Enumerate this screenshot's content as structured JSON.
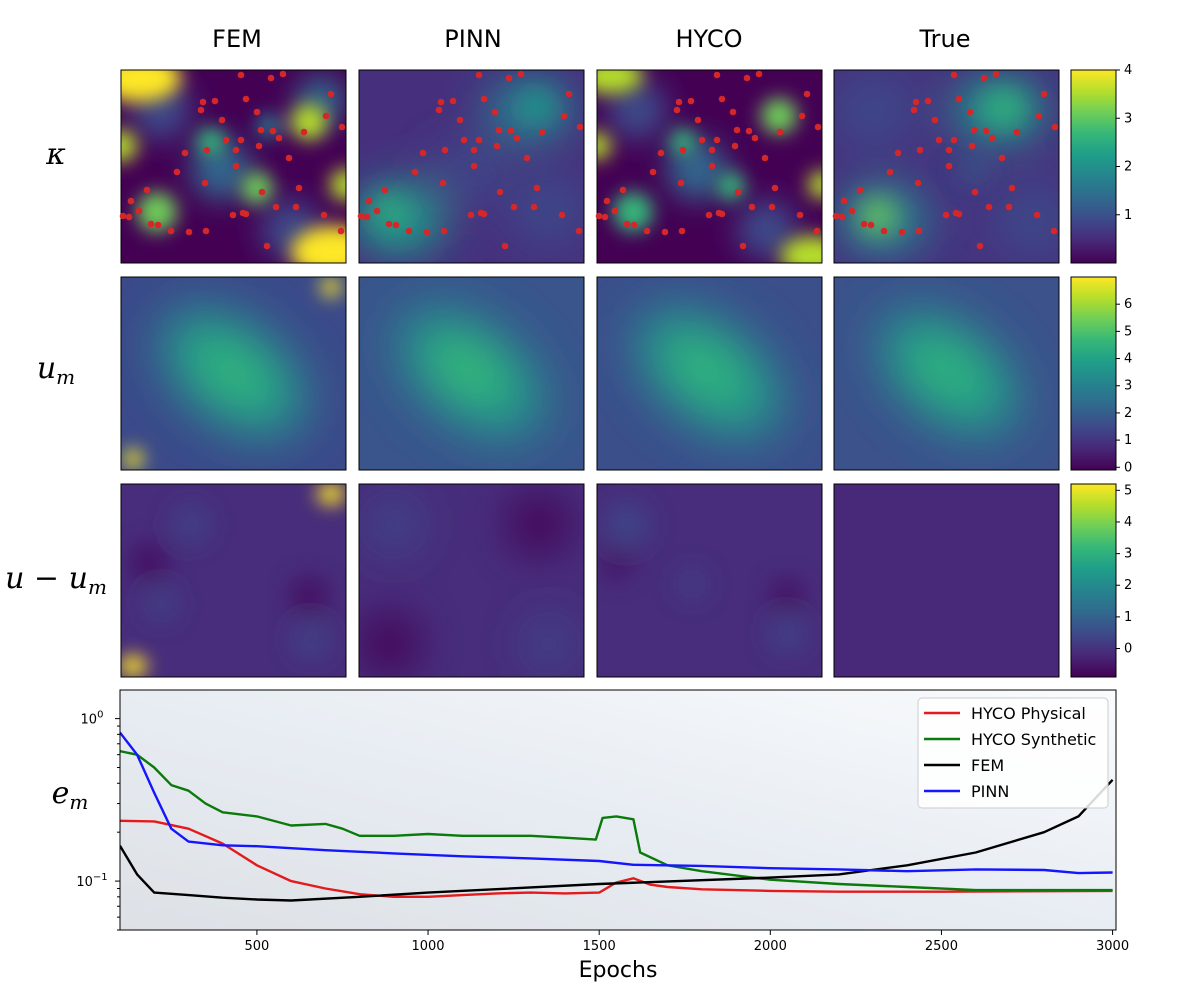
{
  "columns": [
    "FEM",
    "PINN",
    "HYCO",
    "True"
  ],
  "row_labels": [
    "κ",
    "u_m",
    "u − u_m",
    "e_m"
  ],
  "colormap": [
    "#440154",
    "#482777",
    "#3e4989",
    "#31688e",
    "#26828e",
    "#1f9e89",
    "#35b779",
    "#6ece58",
    "#b5de2b",
    "#fde725"
  ],
  "marker_color": "#d62728",
  "colorbars": [
    {
      "min": 0,
      "max": 4,
      "ticks": [
        "1",
        "2",
        "3",
        "4"
      ],
      "tick_values": [
        1,
        2,
        3,
        4
      ]
    },
    {
      "min": -0.1,
      "max": 7.0,
      "ticks": [
        "0",
        "1",
        "2",
        "3",
        "4",
        "5",
        "6"
      ],
      "tick_values": [
        0,
        1,
        2,
        3,
        4,
        5,
        6
      ]
    },
    {
      "min": -0.9,
      "max": 5.2,
      "ticks": [
        "0",
        "1",
        "2",
        "3",
        "4",
        "5"
      ],
      "tick_values": [
        0,
        1,
        2,
        3,
        4,
        5
      ]
    }
  ],
  "chart_data": {
    "type": "line",
    "xlabel": "Epochs",
    "ylabel": "",
    "xlim": [
      100,
      3010
    ],
    "ylim": [
      0.05,
      1.5
    ],
    "yscale": "log",
    "x_ticks": [
      500,
      1000,
      1500,
      2000,
      2500,
      3000
    ],
    "y_ticks": [
      {
        "value": 1.0,
        "label": "10^0"
      },
      {
        "value": 0.1,
        "label": "10^-1"
      }
    ],
    "legend_position": "top-right",
    "series": [
      {
        "name": "HYCO Physical",
        "color": "#e41a1c",
        "points": [
          [
            100,
            0.235
          ],
          [
            200,
            0.233
          ],
          [
            300,
            0.21
          ],
          [
            400,
            0.17
          ],
          [
            500,
            0.125
          ],
          [
            600,
            0.1
          ],
          [
            700,
            0.09
          ],
          [
            800,
            0.083
          ],
          [
            900,
            0.08
          ],
          [
            1000,
            0.08
          ],
          [
            1100,
            0.082
          ],
          [
            1200,
            0.084
          ],
          [
            1300,
            0.085
          ],
          [
            1400,
            0.084
          ],
          [
            1500,
            0.085
          ],
          [
            1550,
            0.098
          ],
          [
            1600,
            0.104
          ],
          [
            1650,
            0.095
          ],
          [
            1700,
            0.092
          ],
          [
            1800,
            0.089
          ],
          [
            2000,
            0.087
          ],
          [
            2200,
            0.086
          ],
          [
            2500,
            0.086
          ],
          [
            3000,
            0.087
          ]
        ]
      },
      {
        "name": "HYCO Synthetic",
        "color": "#0a7a0a",
        "points": [
          [
            100,
            0.63
          ],
          [
            150,
            0.6
          ],
          [
            200,
            0.5
          ],
          [
            250,
            0.39
          ],
          [
            300,
            0.36
          ],
          [
            350,
            0.3
          ],
          [
            400,
            0.265
          ],
          [
            500,
            0.25
          ],
          [
            600,
            0.22
          ],
          [
            700,
            0.225
          ],
          [
            750,
            0.21
          ],
          [
            800,
            0.19
          ],
          [
            900,
            0.19
          ],
          [
            1000,
            0.195
          ],
          [
            1100,
            0.19
          ],
          [
            1200,
            0.19
          ],
          [
            1300,
            0.19
          ],
          [
            1400,
            0.185
          ],
          [
            1490,
            0.18
          ],
          [
            1510,
            0.245
          ],
          [
            1550,
            0.25
          ],
          [
            1600,
            0.24
          ],
          [
            1620,
            0.15
          ],
          [
            1700,
            0.125
          ],
          [
            1800,
            0.115
          ],
          [
            2000,
            0.102
          ],
          [
            2200,
            0.096
          ],
          [
            2400,
            0.092
          ],
          [
            2600,
            0.088
          ],
          [
            3000,
            0.088
          ]
        ]
      },
      {
        "name": "FEM",
        "color": "#000000",
        "points": [
          [
            100,
            0.165
          ],
          [
            150,
            0.11
          ],
          [
            200,
            0.085
          ],
          [
            300,
            0.082
          ],
          [
            400,
            0.079
          ],
          [
            500,
            0.077
          ],
          [
            600,
            0.076
          ],
          [
            800,
            0.08
          ],
          [
            1000,
            0.085
          ],
          [
            1500,
            0.096
          ],
          [
            2000,
            0.105
          ],
          [
            2200,
            0.11
          ],
          [
            2400,
            0.125
          ],
          [
            2600,
            0.15
          ],
          [
            2800,
            0.2
          ],
          [
            2900,
            0.25
          ],
          [
            3000,
            0.42
          ]
        ]
      },
      {
        "name": "PINN",
        "color": "#1515ff",
        "points": [
          [
            100,
            0.82
          ],
          [
            150,
            0.6
          ],
          [
            200,
            0.35
          ],
          [
            250,
            0.21
          ],
          [
            300,
            0.175
          ],
          [
            400,
            0.166
          ],
          [
            500,
            0.164
          ],
          [
            700,
            0.155
          ],
          [
            900,
            0.148
          ],
          [
            1100,
            0.142
          ],
          [
            1300,
            0.138
          ],
          [
            1500,
            0.133
          ],
          [
            1600,
            0.126
          ],
          [
            1800,
            0.124
          ],
          [
            2000,
            0.12
          ],
          [
            2200,
            0.118
          ],
          [
            2400,
            0.115
          ],
          [
            2600,
            0.118
          ],
          [
            2800,
            0.117
          ],
          [
            2900,
            0.112
          ],
          [
            3000,
            0.113
          ]
        ]
      }
    ]
  }
}
